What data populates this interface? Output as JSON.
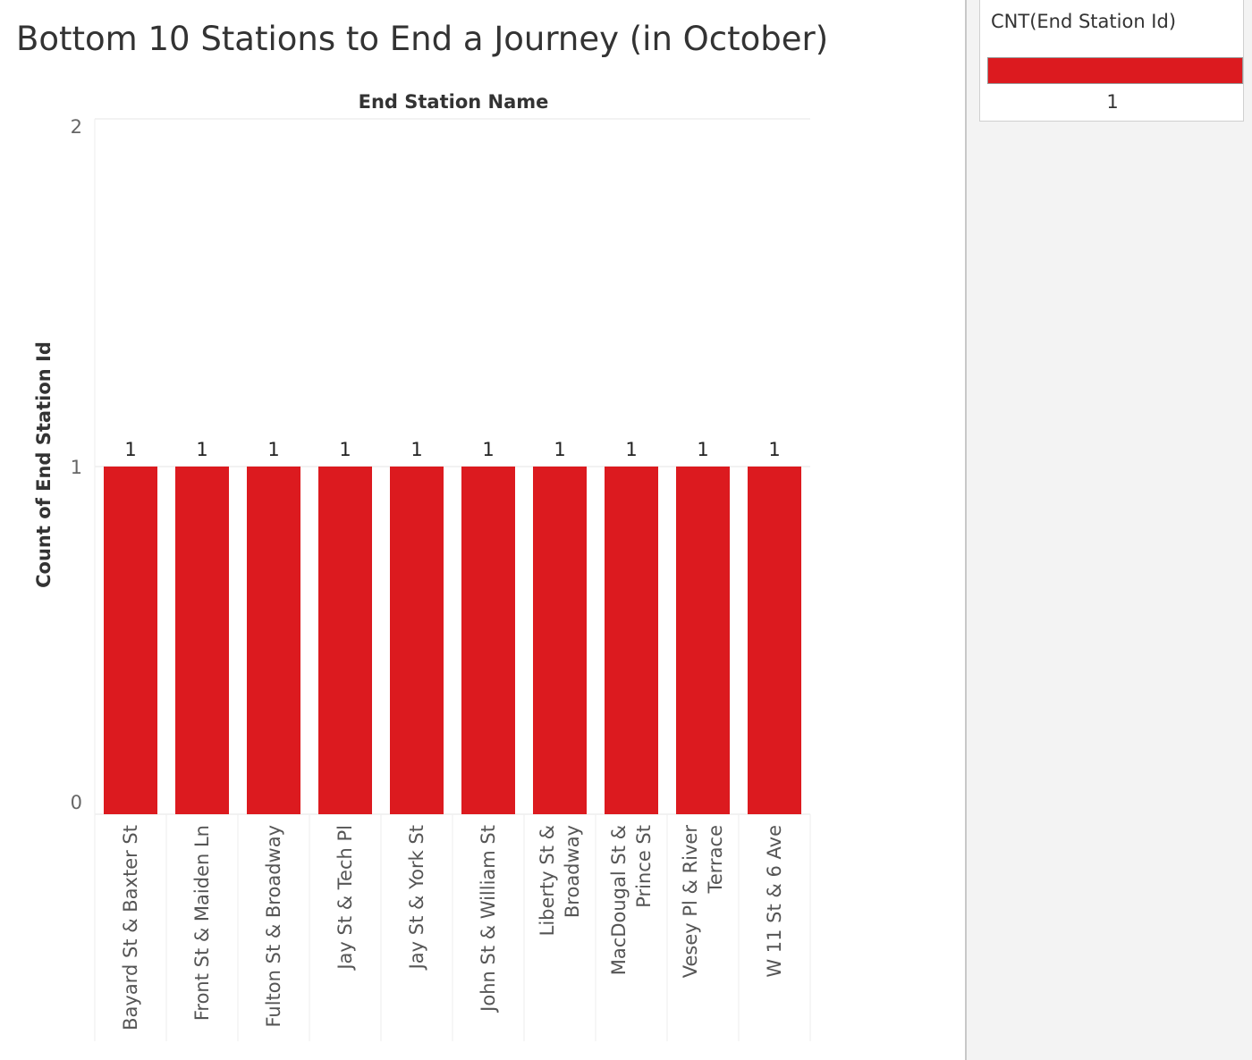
{
  "legend": {
    "title": "CNT(End Station Id)",
    "value": "1"
  },
  "chart_data": {
    "type": "bar",
    "title": "Bottom 10 Stations to End a Journey (in October)",
    "top_axis_label": "End Station Name",
    "ylabel": "Count of End Station Id",
    "ylim": [
      0,
      2
    ],
    "yticks": [
      0,
      1,
      2
    ],
    "categories": [
      [
        "Bayard St & Baxter St"
      ],
      [
        "Front St & Maiden Ln"
      ],
      [
        "Fulton St & Broadway"
      ],
      [
        "Jay St & Tech Pl"
      ],
      [
        "Jay St & York St"
      ],
      [
        "John St & William St"
      ],
      [
        "Liberty St &",
        "Broadway"
      ],
      [
        "MacDougal St &",
        "Prince St"
      ],
      [
        "Vesey Pl & River",
        "Terrace"
      ],
      [
        "W 11 St & 6 Ave"
      ]
    ],
    "values": [
      1,
      1,
      1,
      1,
      1,
      1,
      1,
      1,
      1,
      1
    ],
    "bar_color": "#dc1a1f",
    "grid": true,
    "data_labels": true
  }
}
